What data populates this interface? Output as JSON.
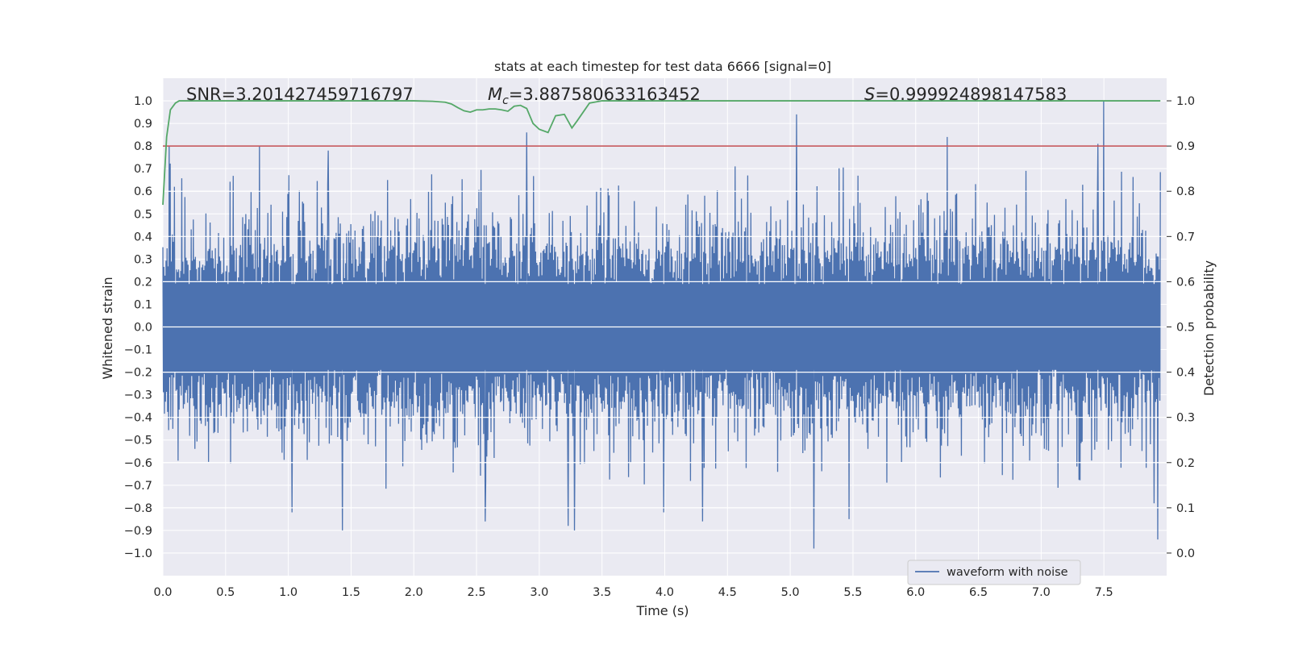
{
  "chart_data": {
    "type": "line",
    "title": "stats at each timestep for test data 6666 [signal=0]",
    "xlabel": "Time (s)",
    "ylabel": "Whitened strain",
    "y2label": "Detection probability",
    "xlim": [
      0.0,
      8.0
    ],
    "ylim": [
      -1.1,
      1.1
    ],
    "y2lim": [
      -0.05,
      1.05
    ],
    "grid": true,
    "xticks": [
      "0.0",
      "0.5",
      "1.0",
      "1.5",
      "2.0",
      "2.5",
      "3.0",
      "3.5",
      "4.0",
      "4.5",
      "5.0",
      "5.5",
      "6.0",
      "6.5",
      "7.0",
      "7.5"
    ],
    "yticks": [
      "1.0",
      "0.9",
      "0.8",
      "0.7",
      "0.6",
      "0.5",
      "0.4",
      "0.3",
      "0.2",
      "0.1",
      "0.0",
      "−0.1",
      "−0.2",
      "−0.3",
      "−0.4",
      "−0.5",
      "−0.6",
      "−0.7",
      "−0.8",
      "−0.9",
      "−1.0"
    ],
    "y2ticks": [
      "1.0",
      "0.9",
      "0.8",
      "0.7",
      "0.6",
      "0.5",
      "0.4",
      "0.3",
      "0.2",
      "0.1",
      "0.0"
    ],
    "annotations": {
      "snr": "SNR=3.201427459716797",
      "mc_symbol": "M",
      "mc_sub": "c",
      "mc_value": "=3.887580633163452",
      "s_symbol": "S",
      "s_value": "=0.999924898147583"
    },
    "legend": {
      "label": "waveform with noise",
      "location": "lower-right"
    },
    "threshold": {
      "value": 0.9,
      "axis": "right",
      "color": "#c44e52"
    },
    "probability": {
      "color": "#55a868",
      "x": [
        0.0,
        0.03,
        0.06,
        0.1,
        0.13,
        0.2,
        0.5,
        1.0,
        1.5,
        2.0,
        2.15,
        2.25,
        2.3,
        2.35,
        2.4,
        2.45,
        2.5,
        2.55,
        2.6,
        2.65,
        2.7,
        2.75,
        2.8,
        2.85,
        2.9,
        2.95,
        3.0,
        3.07,
        3.13,
        3.2,
        3.26,
        3.3,
        3.35,
        3.4,
        3.5,
        4.0,
        5.0,
        6.0,
        7.0,
        7.4,
        7.5,
        7.95
      ],
      "y": [
        0.77,
        0.92,
        0.98,
        0.995,
        1.0,
        1.0,
        1.0,
        1.0,
        1.0,
        1.0,
        0.999,
        0.997,
        0.993,
        0.985,
        0.978,
        0.975,
        0.98,
        0.98,
        0.982,
        0.982,
        0.98,
        0.977,
        0.988,
        0.99,
        0.983,
        0.95,
        0.937,
        0.93,
        0.967,
        0.97,
        0.94,
        0.955,
        0.975,
        0.995,
        1.0,
        1.0,
        1.0,
        1.0,
        1.0,
        1.0,
        1.0,
        1.0
      ]
    },
    "waveform": {
      "name": "waveform with noise",
      "color": "#4c72b0",
      "n_samples": 1900,
      "dense_amplitude": 0.2,
      "peaks": [
        {
          "x": 0.05,
          "y": 0.8
        },
        {
          "x": 0.77,
          "y": 0.8
        },
        {
          "x": 1.32,
          "y": 0.78
        },
        {
          "x": 2.9,
          "y": 0.86
        },
        {
          "x": 5.05,
          "y": 0.94
        },
        {
          "x": 6.25,
          "y": 0.84
        },
        {
          "x": 7.5,
          "y": 1.0
        },
        {
          "x": 7.45,
          "y": 0.81
        },
        {
          "x": 1.43,
          "y": -0.9
        },
        {
          "x": 2.57,
          "y": -0.86
        },
        {
          "x": 3.28,
          "y": -0.9
        },
        {
          "x": 3.23,
          "y": -0.88
        },
        {
          "x": 5.19,
          "y": -0.98
        },
        {
          "x": 7.93,
          "y": -0.94
        },
        {
          "x": 1.03,
          "y": -0.82
        },
        {
          "x": 3.99,
          "y": -0.82
        },
        {
          "x": 4.3,
          "y": -0.86
        },
        {
          "x": 5.47,
          "y": -0.85
        },
        {
          "x": 7.9,
          "y": -0.78
        }
      ]
    }
  }
}
